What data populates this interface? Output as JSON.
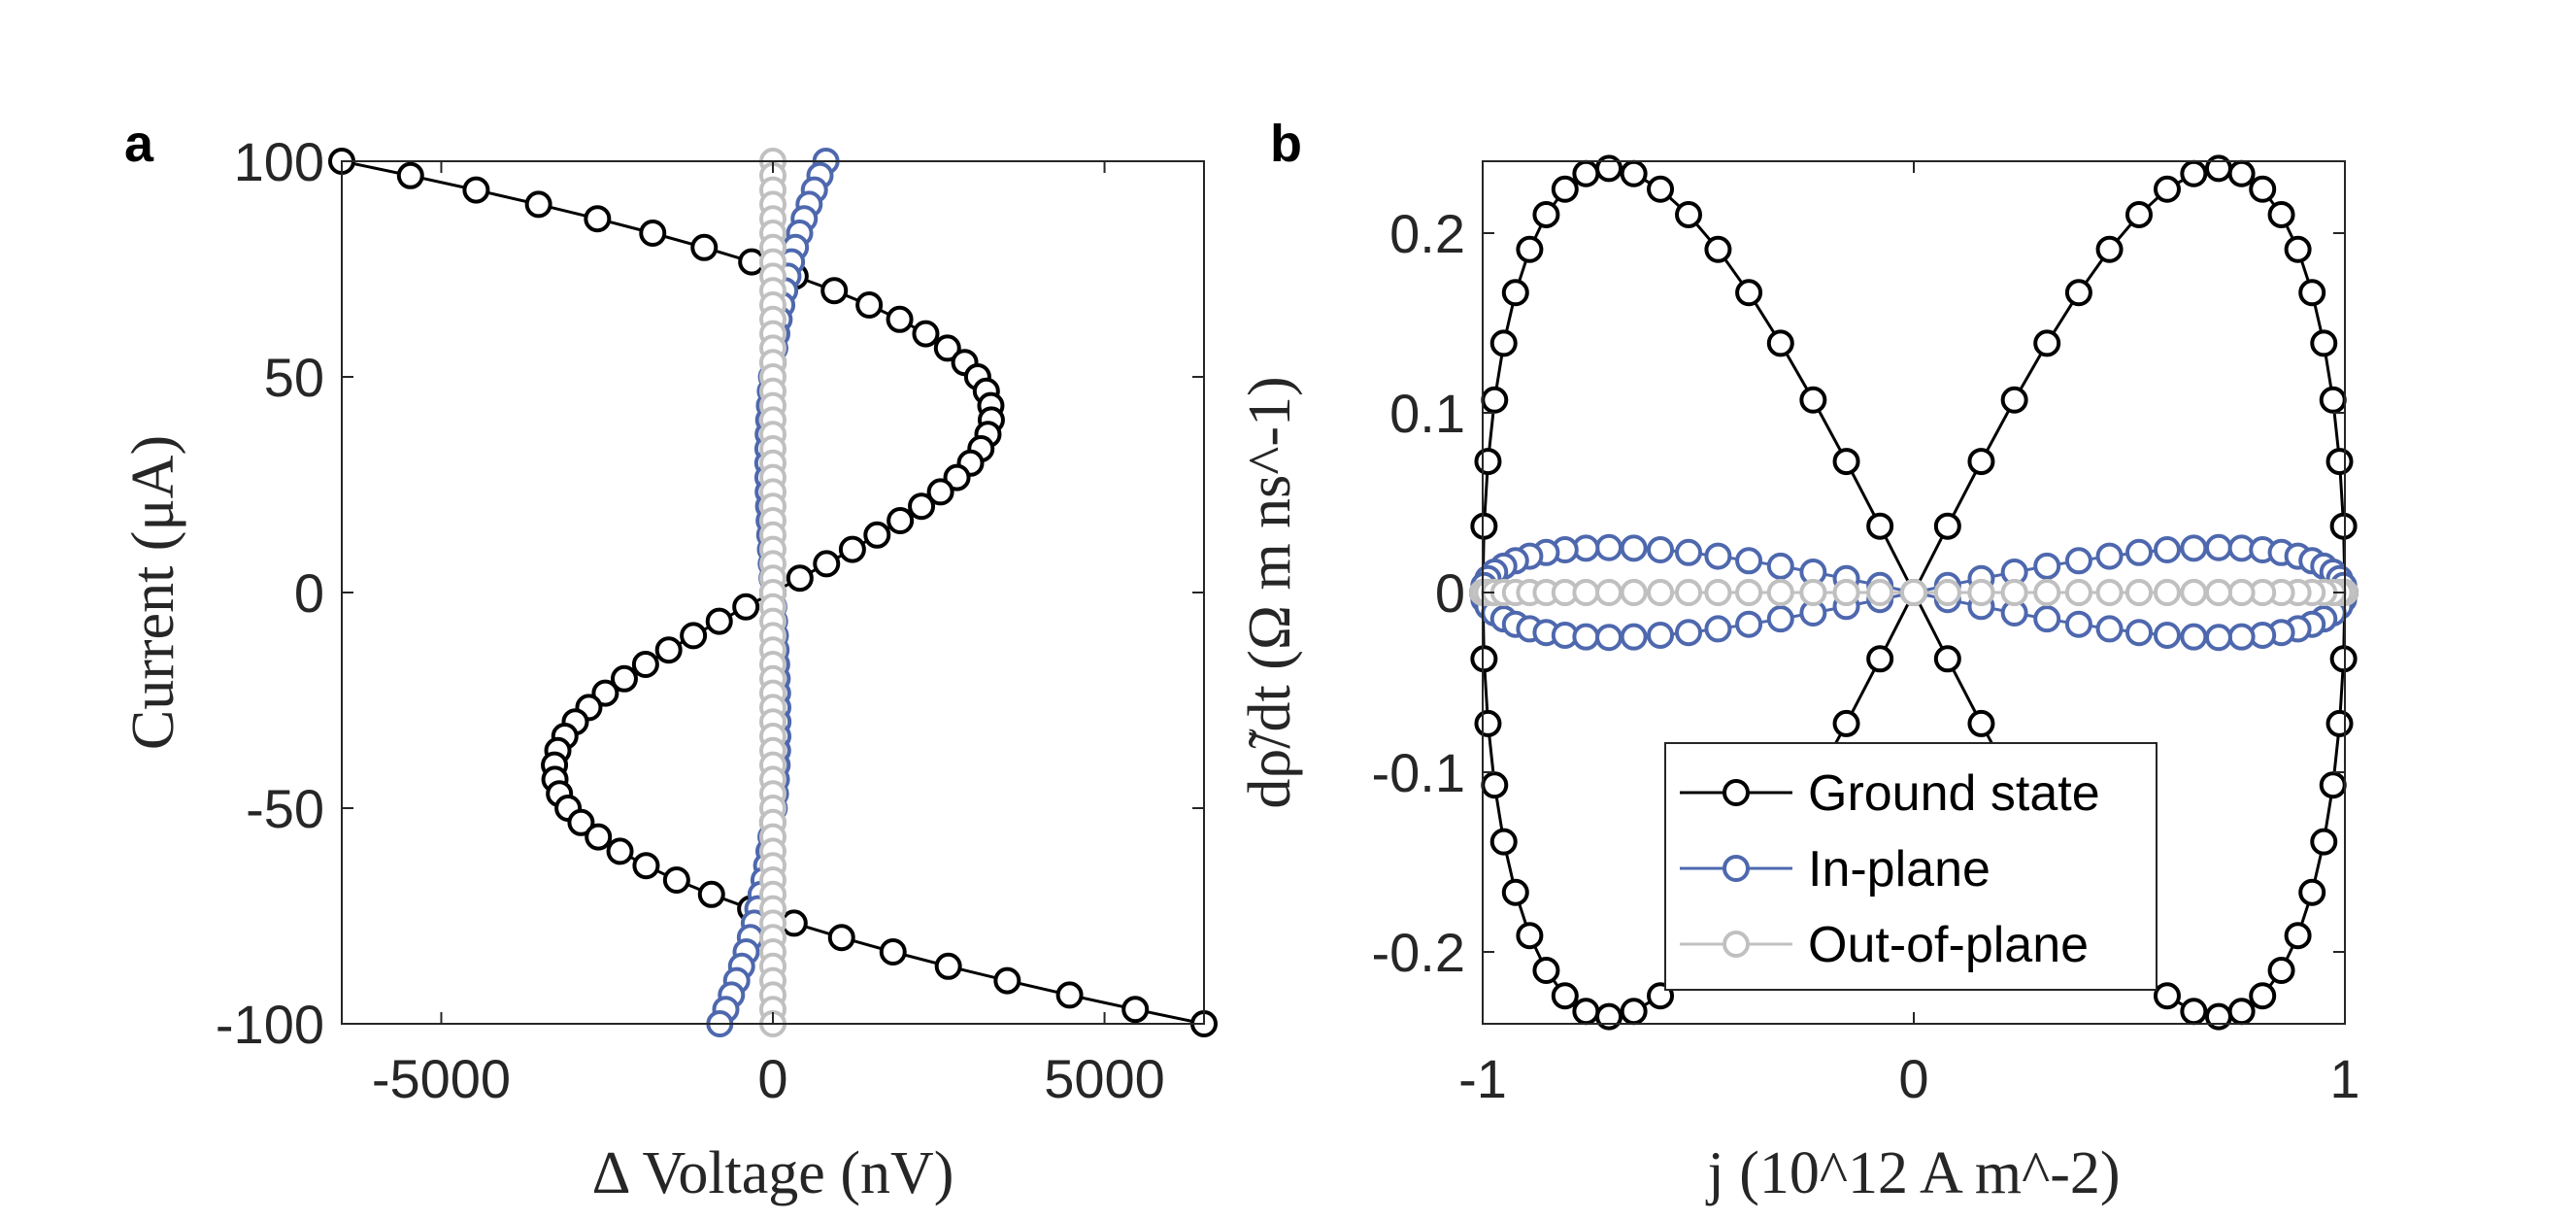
{
  "colors": {
    "ground": "#000000",
    "inplane": "#4e68ae",
    "outofplane": "#c0c0c0",
    "axis": "#262626"
  },
  "chart_data": [
    {
      "type": "line",
      "panel_label": "a",
      "xlabel": "Δ Voltage (nV)",
      "ylabel": "Current (μA)",
      "xlim": [
        -6500,
        6500
      ],
      "ylim": [
        -100,
        100
      ],
      "xticks": [
        -5000,
        0,
        5000
      ],
      "xtick_labels": [
        "-5000",
        "0",
        "5000"
      ],
      "yticks": [
        100,
        50,
        0,
        -50,
        -100
      ],
      "ytick_labels": [
        "100",
        "50",
        "0",
        "-50",
        "-100"
      ],
      "grid": false,
      "series": [
        {
          "name": "Ground state",
          "color_key": "ground",
          "x_model": {
            "kind": "sine_current",
            "amp": 6500,
            "k": 2.1
          },
          "y_model": "current",
          "points": 61
        },
        {
          "name": "In-plane",
          "color_key": "inplane",
          "x_model": {
            "kind": "cubic_current",
            "amp": 800
          },
          "y_model": "current",
          "points": 61
        },
        {
          "name": "Out-of-plane",
          "color_key": "outofplane",
          "x_model": {
            "kind": "zero"
          },
          "y_model": "current",
          "points": 61
        }
      ]
    },
    {
      "type": "line",
      "panel_label": "b",
      "xlabel": "j (10^12 A m^-2)",
      "ylabel": "dρ̃/dt (Ω m ns^-1)",
      "xlim": [
        -1,
        1
      ],
      "ylim": [
        -0.24,
        0.24
      ],
      "xticks": [
        -1,
        0,
        1
      ],
      "xtick_labels": [
        "-1",
        "0",
        "1"
      ],
      "yticks": [
        0.2,
        0.1,
        0,
        -0.1,
        -0.2
      ],
      "ytick_labels": [
        "0.2",
        "0.1",
        "0",
        "-0.1",
        "-0.2"
      ],
      "grid": false,
      "legend": {
        "position": "bottom-center",
        "entries": [
          "Ground state",
          "In-plane",
          "Out-of-plane"
        ]
      },
      "series": [
        {
          "name": "Ground state",
          "color_key": "ground",
          "amplitude": 0.236,
          "points": 80
        },
        {
          "name": "In-plane",
          "color_key": "inplane",
          "amplitude": 0.025,
          "points": 80
        },
        {
          "name": "Out-of-plane",
          "color_key": "outofplane",
          "amplitude": 0.0,
          "points": 80
        }
      ]
    }
  ]
}
